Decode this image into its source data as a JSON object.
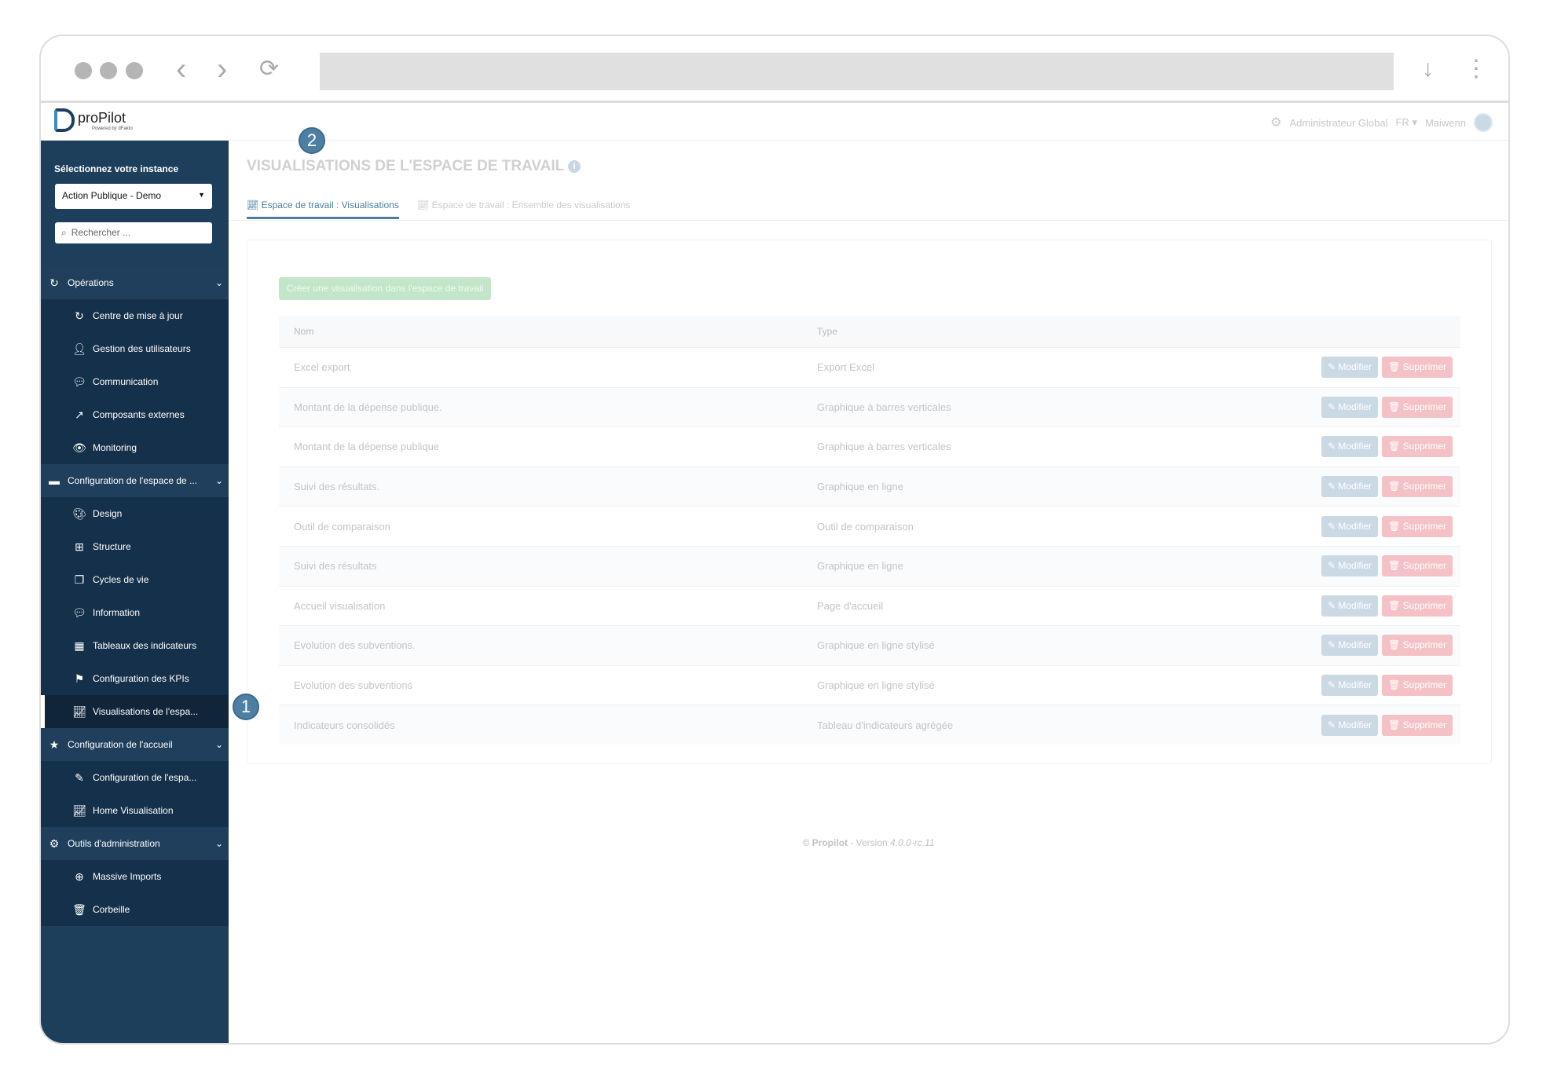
{
  "browser": {
    "icons": [
      "window-dots",
      "back-icon",
      "forward-icon",
      "reload-icon",
      "download-icon",
      "kebab-menu-icon"
    ]
  },
  "header": {
    "logo": "proPilot",
    "logo_sub": "Powered by dFakto",
    "role": "Administrateur Global",
    "lang": "FR",
    "user": "Maiwenn"
  },
  "sidebar": {
    "instance_label": "Sélectionnez votre instance",
    "instance_value": "Action Publique - Demo",
    "search_placeholder": "Rechercher ...",
    "colors": {
      "bg": "#1e3f5b",
      "sub_bg": "#15304a",
      "active_bg": "#10253a"
    },
    "groups": [
      {
        "label": "Opérations",
        "icon": "refresh-icon",
        "items": [
          {
            "label": "Centre de mise à jour",
            "icon": "refresh-icon"
          },
          {
            "label": "Gestion des utilisateurs",
            "icon": "user-icon"
          },
          {
            "label": "Communication",
            "icon": "comments-icon"
          },
          {
            "label": "Composants externes",
            "icon": "share-icon"
          },
          {
            "label": "Monitoring",
            "icon": "eye-icon"
          }
        ]
      },
      {
        "label": "Configuration de l'espace de ...",
        "icon": "folder-icon",
        "items": [
          {
            "label": "Design",
            "icon": "palette-icon"
          },
          {
            "label": "Structure",
            "icon": "sitemap-icon"
          },
          {
            "label": "Cycles de vie",
            "icon": "copy-icon"
          },
          {
            "label": "Information",
            "icon": "comment-dots-icon"
          },
          {
            "label": "Tableaux des indicateurs",
            "icon": "table-icon"
          },
          {
            "label": "Configuration des KPIs",
            "icon": "flag-icon"
          },
          {
            "label": "Visualisations de l'espa...",
            "icon": "chart-line-icon",
            "active": true
          }
        ]
      },
      {
        "label": "Configuration de l'accueil",
        "icon": "star-icon",
        "items": [
          {
            "label": "Configuration de l'espa...",
            "icon": "edit-icon"
          },
          {
            "label": "Home Visualisation",
            "icon": "chart-line-icon"
          }
        ]
      },
      {
        "label": "Outils d'administration",
        "icon": "gear-icon",
        "items": [
          {
            "label": "Massive Imports",
            "icon": "download-circle-icon"
          },
          {
            "label": "Corbeille",
            "icon": "trash-icon"
          }
        ]
      }
    ]
  },
  "badges": {
    "one": "1",
    "two": "2"
  },
  "main": {
    "title": "VISUALISATIONS DE L'ESPACE DE TRAVAIL",
    "tabs": [
      {
        "label": "Espace de travail : Visualisations",
        "active": true
      },
      {
        "label": "Espace de travail : Ensemble des visualisations"
      }
    ],
    "create_button": "Créer une visualisation dans l'espace de travail",
    "columns": [
      "Nom",
      "Type"
    ],
    "edit_label": "Modifier",
    "delete_label": "Supprimer",
    "rows": [
      {
        "name": "Excel export",
        "type": "Export Excel"
      },
      {
        "name": "Montant de la dépense publique.",
        "type": "Graphique à barres verticales"
      },
      {
        "name": "Montant de la dépense publique",
        "type": "Graphique à barres verticales"
      },
      {
        "name": "Suivi des résultats.",
        "type": "Graphique en ligne"
      },
      {
        "name": "Outil de comparaison",
        "type": "Outil de comparaison"
      },
      {
        "name": "Suivi des résultats",
        "type": "Graphique en ligne"
      },
      {
        "name": "Accueil visualisation",
        "type": "Page d'accueil"
      },
      {
        "name": "Evolution des subventions.",
        "type": "Graphique en ligne stylisé"
      },
      {
        "name": "Evolution des subventions",
        "type": "Graphique en ligne stylisé"
      },
      {
        "name": "Indicateurs consolidés",
        "type": "Tableau d'indicateurs agrégée"
      }
    ],
    "footer": {
      "brand": "© Propilot",
      "sep": " - Version ",
      "version": "4.0.0-rc.11"
    }
  }
}
